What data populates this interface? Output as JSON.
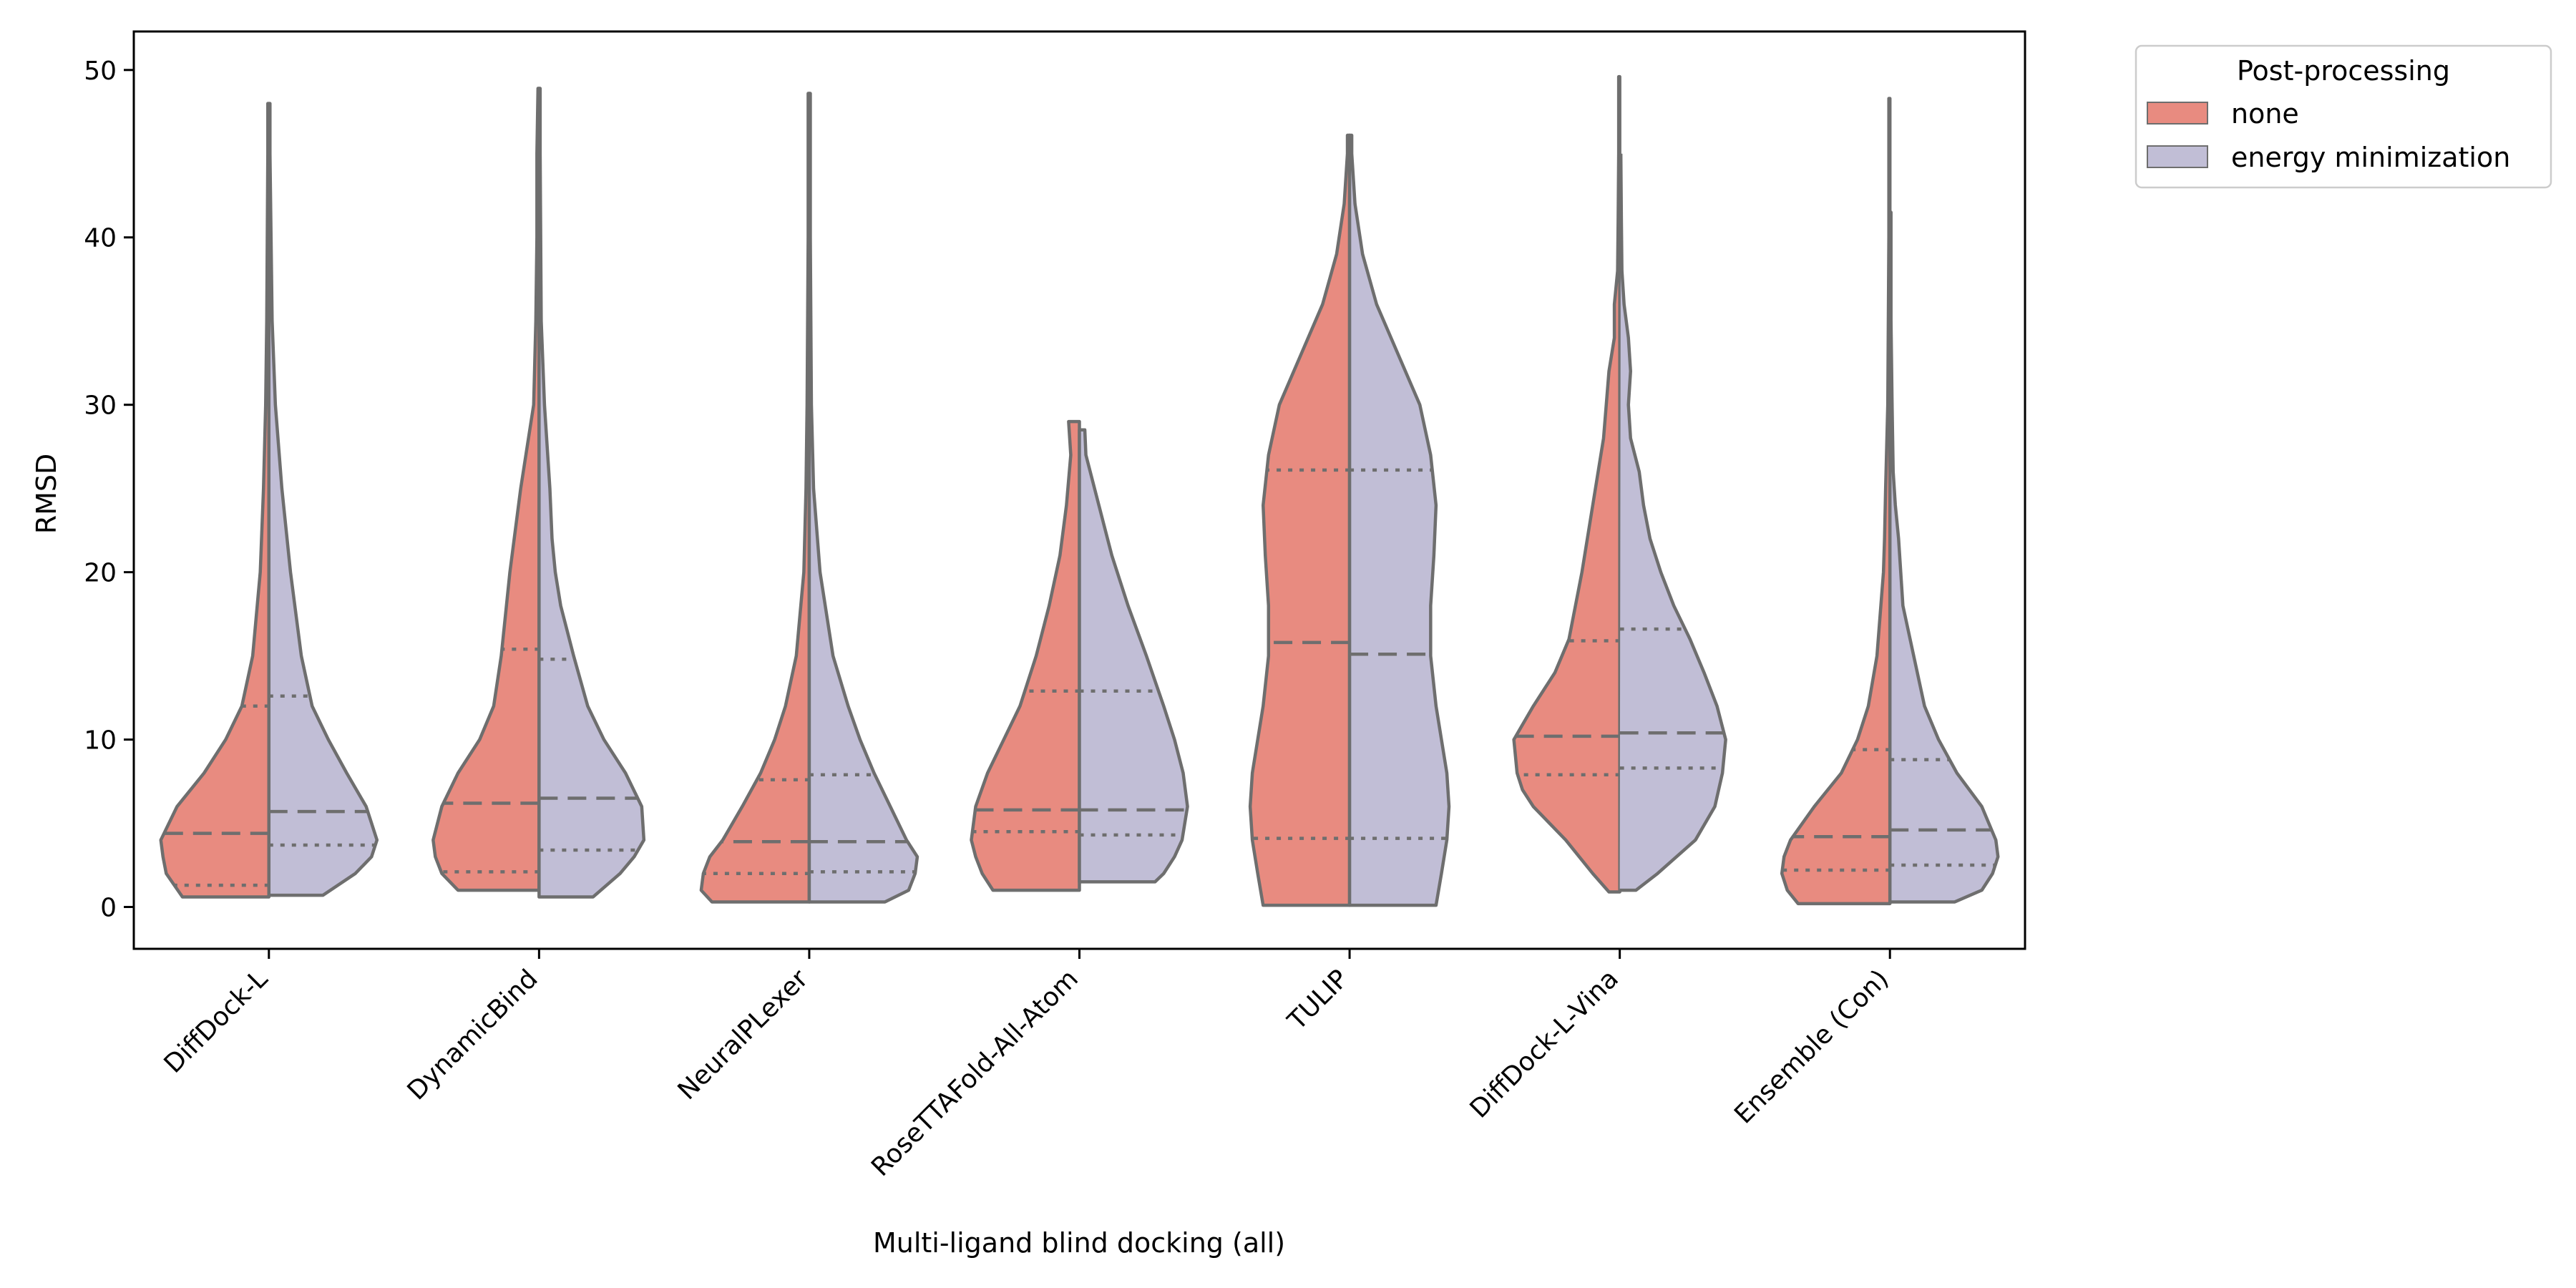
{
  "chart_data": {
    "type": "violin",
    "split": true,
    "xlabel": "Multi-ligand blind docking (all)",
    "ylabel": "RMSD",
    "ylim": [
      -2.5,
      52.3
    ],
    "yticks": [
      0,
      10,
      20,
      30,
      40,
      50
    ],
    "grid": false,
    "inner": "quartile",
    "cut": 0,
    "legend": {
      "title": "Post-processing",
      "position": "outside-top-right",
      "entries": [
        {
          "label": "none",
          "color": "#e88b80"
        },
        {
          "label": "energy minimization",
          "color": "#c1bed6"
        }
      ]
    },
    "categories": [
      "DiffDock-L",
      "DynamicBind",
      "NeuralPLexer",
      "RoseTTAFold-All-Atom",
      "TULIP",
      "DiffDock-L-Vina",
      "Ensemble (Con)"
    ],
    "series": [
      {
        "name": "none",
        "color": "#e88b80",
        "min": [
          0.6,
          1.0,
          0.3,
          1.0,
          0.1,
          0.9,
          0.2
        ],
        "q1": [
          1.3,
          2.1,
          2.0,
          4.5,
          4.1,
          7.9,
          2.2
        ],
        "median": [
          4.4,
          6.2,
          3.9,
          5.8,
          15.8,
          10.2,
          4.2
        ],
        "q3": [
          12.0,
          15.4,
          7.6,
          12.9,
          26.1,
          15.9,
          9.4
        ],
        "max": [
          48.0,
          48.9,
          48.6,
          29.0,
          46.1,
          49.6,
          48.3
        ],
        "density_y": [
          [
            0.6,
            2,
            3,
            4,
            6,
            8,
            10,
            12,
            15,
            20,
            25,
            30,
            35,
            40,
            45,
            48.0
          ],
          [
            1.0,
            2,
            3,
            4,
            6,
            8,
            10,
            12,
            15,
            20,
            25,
            30,
            35,
            40,
            45,
            48.9
          ],
          [
            0.3,
            1,
            2,
            3,
            4,
            6,
            8,
            10,
            12,
            15,
            20,
            25,
            30,
            35,
            40,
            45,
            48.6
          ],
          [
            1.0,
            2,
            3,
            4,
            6,
            8,
            10,
            12,
            15,
            18,
            21,
            24,
            27,
            29.0
          ],
          [
            0.1,
            2,
            4,
            6,
            8,
            10,
            12,
            15,
            18,
            21,
            24,
            27,
            30,
            33,
            36,
            39,
            42,
            45,
            46.1
          ],
          [
            0.9,
            2,
            4,
            6,
            7,
            8,
            10,
            12,
            14,
            16,
            20,
            24,
            28,
            32,
            34,
            36,
            38,
            41,
            45,
            49.6
          ],
          [
            0.2,
            1,
            2,
            3,
            4,
            6,
            8,
            10,
            12,
            15,
            20,
            22,
            25,
            30,
            35,
            40,
            48.3
          ]
        ],
        "density_w": [
          [
            0.8,
            0.95,
            0.98,
            1.0,
            0.85,
            0.6,
            0.4,
            0.25,
            0.15,
            0.08,
            0.05,
            0.03,
            0.02,
            0.015,
            0.01,
            0.01
          ],
          [
            0.75,
            0.9,
            0.96,
            0.98,
            0.9,
            0.75,
            0.55,
            0.42,
            0.35,
            0.27,
            0.17,
            0.05,
            0.03,
            0.02,
            0.02,
            0.01
          ],
          [
            0.9,
            1.0,
            0.98,
            0.92,
            0.8,
            0.62,
            0.45,
            0.32,
            0.22,
            0.12,
            0.05,
            0.03,
            0.02,
            0.015,
            0.01,
            0.01,
            0.01
          ],
          [
            0.8,
            0.9,
            0.96,
            1.0,
            0.96,
            0.85,
            0.7,
            0.55,
            0.4,
            0.28,
            0.18,
            0.12,
            0.08,
            0.1
          ],
          [
            0.8,
            0.85,
            0.9,
            0.92,
            0.9,
            0.85,
            0.8,
            0.75,
            0.75,
            0.78,
            0.8,
            0.75,
            0.65,
            0.45,
            0.25,
            0.12,
            0.05,
            0.02,
            0.02
          ],
          [
            0.1,
            0.25,
            0.5,
            0.8,
            0.9,
            0.95,
            0.98,
            0.8,
            0.6,
            0.47,
            0.35,
            0.25,
            0.15,
            0.1,
            0.05,
            0.05,
            0.02,
            0.015,
            0.01,
            0.01
          ],
          [
            0.85,
            0.95,
            1.0,
            0.98,
            0.92,
            0.7,
            0.45,
            0.3,
            0.2,
            0.12,
            0.06,
            0.05,
            0.04,
            0.02,
            0.015,
            0.01,
            0.01
          ]
        ]
      },
      {
        "name": "energy minimization",
        "color": "#c1bed6",
        "min": [
          0.7,
          0.6,
          0.3,
          1.5,
          0.1,
          1.0,
          0.3
        ],
        "q1": [
          3.7,
          3.4,
          2.1,
          4.3,
          4.1,
          8.3,
          2.5
        ],
        "median": [
          5.7,
          6.5,
          3.9,
          5.8,
          15.1,
          10.4,
          4.6
        ],
        "q3": [
          12.6,
          14.8,
          7.9,
          12.9,
          26.1,
          16.6,
          8.8
        ],
        "max": [
          48.0,
          48.9,
          48.6,
          28.5,
          46.1,
          49.6,
          41.5
        ],
        "density_y": [
          [
            0.7,
            2,
            3,
            4,
            6,
            8,
            10,
            12,
            15,
            20,
            25,
            30,
            35,
            40,
            45,
            48.0
          ],
          [
            0.6,
            2,
            3,
            4,
            6,
            8,
            10,
            12,
            15,
            18,
            20,
            22,
            25,
            30,
            35,
            40,
            45,
            48.9
          ],
          [
            0.3,
            1,
            2,
            3,
            4,
            6,
            8,
            10,
            12,
            15,
            20,
            25,
            30,
            35,
            40,
            45,
            48.6
          ],
          [
            1.5,
            2,
            3,
            4,
            6,
            8,
            10,
            12,
            15,
            18,
            21,
            24,
            27,
            28.5
          ],
          [
            0.1,
            2,
            4,
            6,
            8,
            10,
            12,
            15,
            18,
            21,
            24,
            27,
            30,
            33,
            36,
            39,
            42,
            45,
            46.1
          ],
          [
            1.0,
            2,
            4,
            6,
            8,
            10,
            12,
            14,
            16,
            18,
            20,
            22,
            24,
            26,
            28,
            30,
            32,
            34,
            36,
            38,
            41,
            45,
            49.6
          ],
          [
            0.3,
            1,
            2,
            3,
            4,
            6,
            8,
            10,
            12,
            15,
            18,
            20,
            22,
            24,
            26,
            30,
            35,
            41.5
          ]
        ],
        "density_w": [
          [
            0.5,
            0.8,
            0.95,
            1.0,
            0.9,
            0.72,
            0.55,
            0.4,
            0.3,
            0.2,
            0.12,
            0.06,
            0.03,
            0.02,
            0.01,
            0.01
          ],
          [
            0.5,
            0.75,
            0.88,
            0.97,
            0.95,
            0.8,
            0.6,
            0.45,
            0.32,
            0.2,
            0.15,
            0.12,
            0.1,
            0.05,
            0.02,
            0.015,
            0.01,
            0.01
          ],
          [
            0.7,
            0.92,
            0.98,
            1.0,
            0.9,
            0.75,
            0.6,
            0.47,
            0.36,
            0.22,
            0.1,
            0.04,
            0.02,
            0.015,
            0.01,
            0.01,
            0.01
          ],
          [
            0.7,
            0.78,
            0.88,
            0.95,
            1.0,
            0.96,
            0.88,
            0.78,
            0.62,
            0.45,
            0.3,
            0.18,
            0.06,
            0.05
          ],
          [
            0.8,
            0.85,
            0.9,
            0.92,
            0.9,
            0.85,
            0.8,
            0.75,
            0.75,
            0.78,
            0.8,
            0.75,
            0.65,
            0.45,
            0.25,
            0.12,
            0.05,
            0.02,
            0.02
          ],
          [
            0.15,
            0.35,
            0.7,
            0.88,
            0.95,
            0.98,
            0.9,
            0.78,
            0.65,
            0.5,
            0.38,
            0.28,
            0.22,
            0.18,
            0.1,
            0.08,
            0.1,
            0.08,
            0.04,
            0.02,
            0.015,
            0.01
          ],
          [
            0.6,
            0.85,
            0.95,
            1.0,
            0.98,
            0.85,
            0.62,
            0.45,
            0.32,
            0.22,
            0.12,
            0.1,
            0.08,
            0.05,
            0.03,
            0.02,
            0.01,
            0.01
          ]
        ]
      }
    ]
  }
}
